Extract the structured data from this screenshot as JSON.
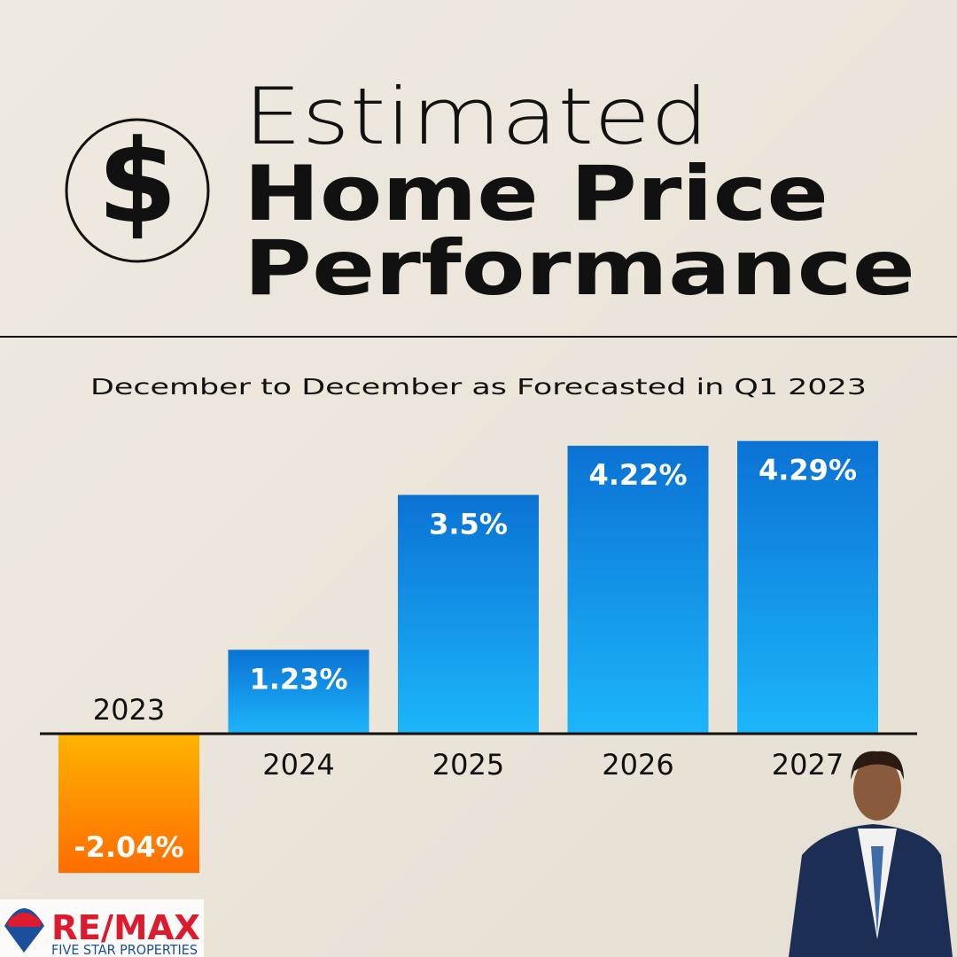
{
  "chart_data": {
    "type": "bar",
    "icon": "$",
    "title_lines": [
      "Estimated",
      "Home Price",
      "Performance"
    ],
    "subtitle": "December to December as Forecasted in Q1 2023",
    "categories": [
      "2023",
      "2024",
      "2025",
      "2026",
      "2027"
    ],
    "values": [
      -2.04,
      1.23,
      3.5,
      4.22,
      4.29
    ],
    "value_labels": [
      "-2.04%",
      "1.23%",
      "3.5%",
      "4.22%",
      "4.29%"
    ],
    "color": "#0b72d4",
    "color_light": "#1cb6fa",
    "negative_color": "#ff6d00",
    "negative_color_light": "#ffb300"
  },
  "branding": {
    "logo": "RE/MAX",
    "office": "FIVE STAR PROPERTIES"
  }
}
